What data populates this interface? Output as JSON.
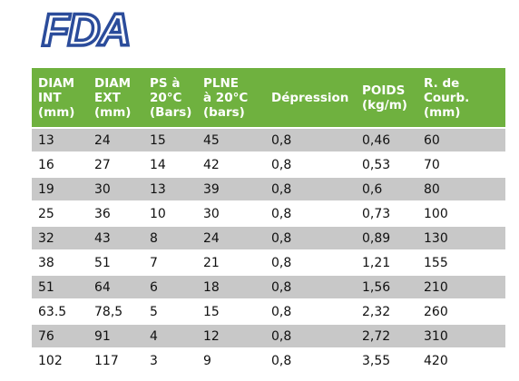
{
  "logo": "FDA",
  "table": {
    "header": [
      [
        "DIAM",
        "INT",
        "(mm)"
      ],
      [
        "DIAM",
        "EXT",
        "(mm)"
      ],
      [
        "PS à",
        "20°C",
        "(Bars)"
      ],
      [
        "PLNE",
        "à 20°C",
        "(bars)"
      ],
      [
        "Dépression"
      ],
      [
        "POIDS",
        "(kg/m)"
      ],
      [
        "R. de",
        "Courb.",
        "(mm)"
      ]
    ],
    "rows": [
      [
        "13",
        "24",
        "15",
        "45",
        "0,8",
        "0,46",
        "60"
      ],
      [
        "16",
        "27",
        "14",
        "42",
        "0,8",
        "0,53",
        "70"
      ],
      [
        "19",
        "30",
        "13",
        "39",
        "0,8",
        "0,6",
        "80"
      ],
      [
        "25",
        "36",
        "10",
        "30",
        "0,8",
        "0,73",
        "100"
      ],
      [
        "32",
        "43",
        "8",
        "24",
        "0,8",
        "0,89",
        "130"
      ],
      [
        "38",
        "51",
        "7",
        "21",
        "0,8",
        "1,21",
        "155"
      ],
      [
        "51",
        "64",
        "6",
        "18",
        "0,8",
        "1,56",
        "210"
      ],
      [
        "63.5",
        "78,5",
        "5",
        "15",
        "0,8",
        "2,32",
        "260"
      ],
      [
        "76",
        "91",
        "4",
        "12",
        "0,8",
        "2,72",
        "310"
      ],
      [
        "102",
        "117",
        "3",
        "9",
        "0,8",
        "3,55",
        "420"
      ]
    ]
  }
}
